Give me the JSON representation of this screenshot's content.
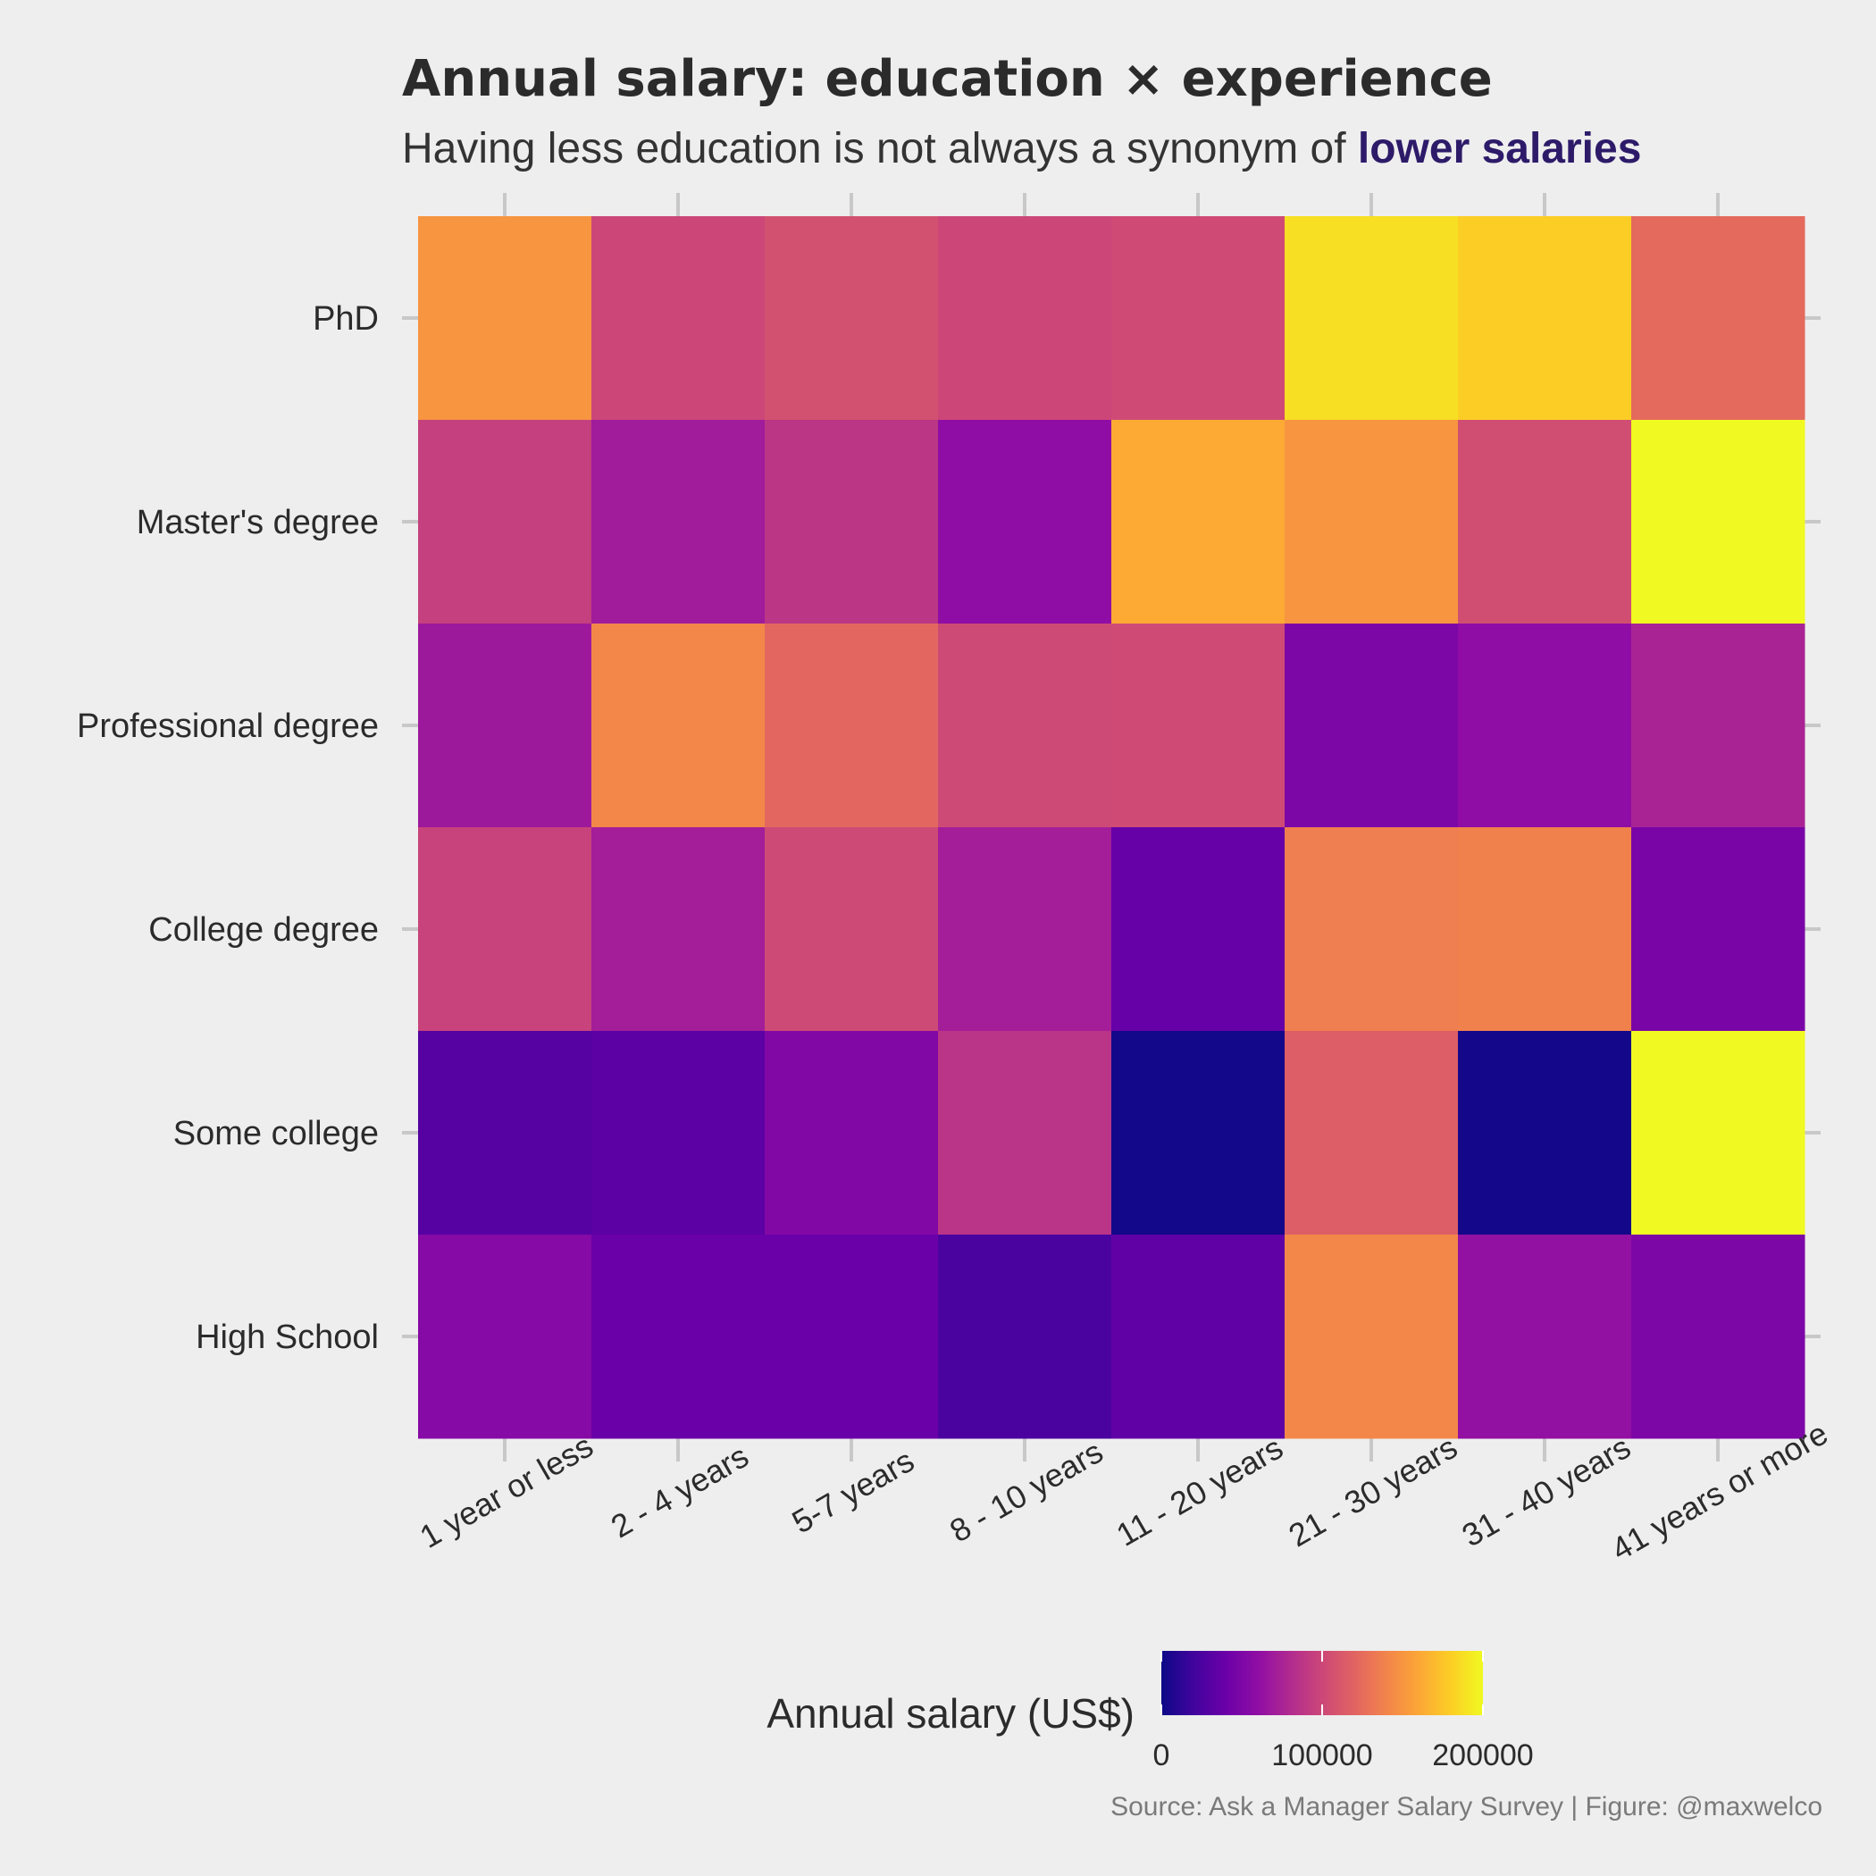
{
  "chart_data": {
    "type": "heatmap",
    "title": "Annual salary: education × experience",
    "subtitle_prefix": "Having less education is not always a synonym of ",
    "subtitle_highlight": "lower salaries",
    "caption": "Source: Ask a Manager Salary Survey | Figure: @maxwelco",
    "x_categories": [
      "1 year or less",
      "2 - 4 years",
      "5-7 years",
      "8 - 10 years",
      "11 - 20 years",
      "21 - 30 years",
      "31 - 40 years",
      "41 years or more"
    ],
    "y_categories": [
      "PhD",
      "Master's degree",
      "Professional degree",
      "College degree",
      "Some college",
      "High School"
    ],
    "values": [
      [
        150000,
        100000,
        107000,
        100000,
        103000,
        188000,
        180000,
        124000
      ],
      [
        95000,
        70000,
        88000,
        60000,
        162000,
        150000,
        105000,
        200000
      ],
      [
        68000,
        142000,
        122000,
        102000,
        103000,
        50000,
        60000,
        75000
      ],
      [
        97000,
        72000,
        102000,
        72000,
        38000,
        136000,
        138000,
        48000
      ],
      [
        30000,
        33000,
        53000,
        87000,
        2000,
        116000,
        3000,
        200000
      ],
      [
        55000,
        40000,
        40000,
        25000,
        35000,
        142000,
        62000,
        50000
      ]
    ],
    "colorscale": "plasma",
    "zlim": [
      0,
      200000
    ],
    "legend": {
      "title": "Annual salary (US$)",
      "position": "bottom",
      "ticks": [
        0,
        100000,
        200000
      ],
      "tick_labels": [
        "0",
        "100000",
        "200000"
      ]
    },
    "grid": false
  }
}
